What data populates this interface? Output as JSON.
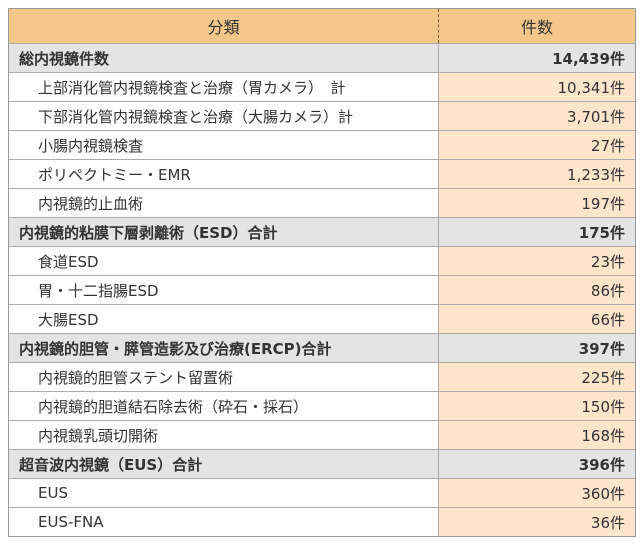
{
  "header": {
    "category": "分類",
    "count": "件数"
  },
  "groups": [
    {
      "label": "総内視鏡件数",
      "count": "14,439件",
      "items": [
        {
          "label": "上部消化管内視鏡検査と治療（胃カメラ）　計",
          "count": "10,341件"
        },
        {
          "label": "下部消化管内視鏡検査と治療（大腸カメラ）計",
          "count": "3,701件"
        },
        {
          "label": "小腸内視鏡検査",
          "count": "27件"
        },
        {
          "label": "ポリペクトミー・EMR",
          "count": "1,233件"
        },
        {
          "label": "内視鏡的止血術",
          "count": "197件"
        }
      ]
    },
    {
      "label": "内視鏡的粘膜下層剥離術（ESD）合計",
      "count": "175件",
      "items": [
        {
          "label": "食道ESD",
          "count": "23件"
        },
        {
          "label": "胃・十二指腸ESD",
          "count": "86件"
        },
        {
          "label": "大腸ESD",
          "count": "66件"
        }
      ]
    },
    {
      "label": "内視鏡的胆管・膵管造影及び治療(ERCP)合計",
      "count": "397件",
      "items": [
        {
          "label": "内視鏡的胆管ステント留置術",
          "count": "225件"
        },
        {
          "label": "内視鏡的胆道結石除去術（砕石・採石）",
          "count": "150件"
        },
        {
          "label": "内視鏡乳頭切開術",
          "count": "168件"
        }
      ]
    },
    {
      "label": "超音波内視鏡（EUS）合計",
      "count": "396件",
      "items": [
        {
          "label": "EUS",
          "count": "360件"
        },
        {
          "label": "EUS-FNA",
          "count": "36件"
        }
      ]
    }
  ]
}
